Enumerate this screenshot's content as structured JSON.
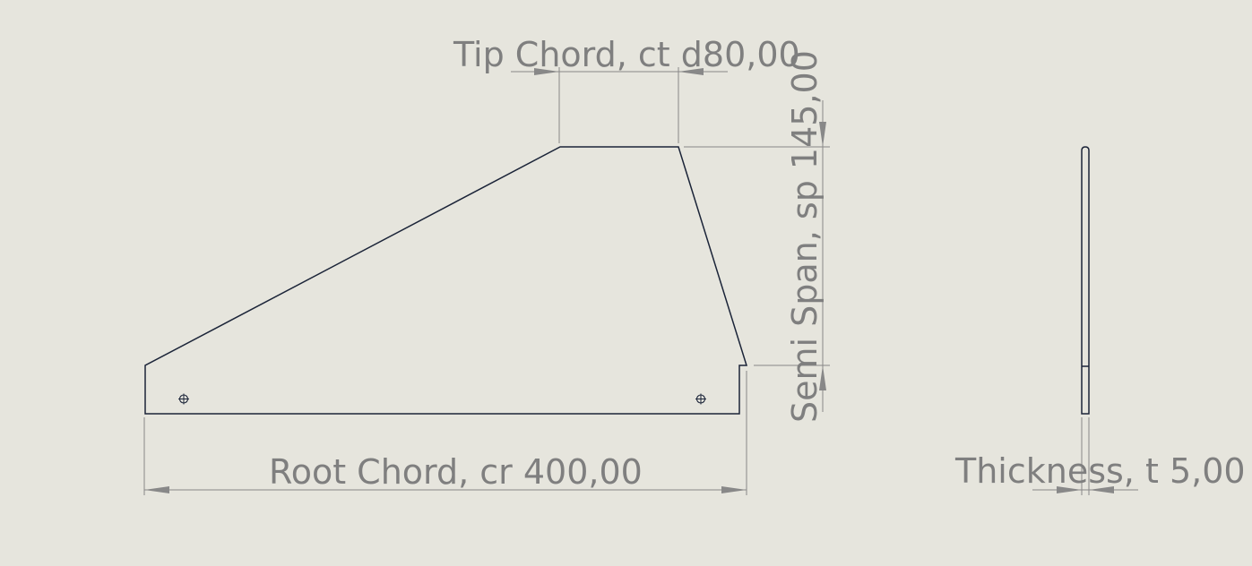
{
  "dimensions": {
    "tip_chord": "Tip Chord, ct d80,00",
    "semi_span": "Semi Span, sp 145,00",
    "root_chord": "Root Chord, cr 400,00",
    "thickness": "Thickness, t 5,00"
  },
  "colors": {
    "background": "#e6e5dd",
    "dimension": "#7f7f7f",
    "outline": "#1b2438"
  }
}
